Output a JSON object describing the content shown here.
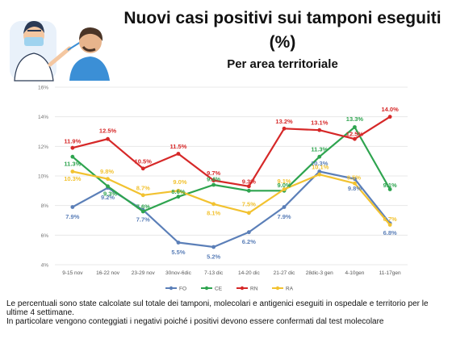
{
  "header": {
    "title": "Nuovi casi positivi sui tamponi eseguiti (%)",
    "subtitle": "Per area territoriale"
  },
  "footnote": {
    "line1": "Le percentuali sono state calcolate sul totale dei tamponi, molecolari e antigenici eseguiti in ospedale e territorio per le ultime 4 settimane.",
    "line2": "In particolare vengono conteggiati i negativi poiché i positivi devono essere confermati dal test molecolare"
  },
  "icons": {
    "illustration": "doctor-swab-test-icon"
  },
  "chart_data": {
    "type": "line",
    "title": "",
    "xlabel": "",
    "ylabel": "",
    "ylim": [
      4,
      16
    ],
    "yticks": [
      4,
      6,
      8,
      10,
      12,
      14,
      16
    ],
    "ytick_labels": [
      "4%",
      "6%",
      "8%",
      "10%",
      "12%",
      "14%",
      "16%"
    ],
    "grid": true,
    "legend_position": "bottom",
    "categories": [
      "9-15 nov",
      "16-22 nov",
      "23-29 nov",
      "30nov-6dic",
      "7-13 dic",
      "14-20 dic",
      "21-27 dic",
      "28dic-3 gen",
      "4-10gen",
      "11-17gen"
    ],
    "series": [
      {
        "name": "FO",
        "color": "#5b7fb8",
        "values": [
          7.9,
          9.2,
          7.7,
          5.5,
          5.2,
          6.2,
          7.9,
          10.3,
          9.8,
          6.8
        ],
        "labels": [
          "7.9%",
          "9.2%",
          "7.7%",
          "5.5%",
          "5.2%",
          "6.2%",
          "7.9%",
          "10.3%",
          "9.8%",
          "6.8%"
        ]
      },
      {
        "name": "CE",
        "color": "#2ea44f",
        "values": [
          11.3,
          9.3,
          7.6,
          8.6,
          9.4,
          9.0,
          9.0,
          11.3,
          13.3,
          9.1
        ],
        "labels": [
          "11.3%",
          "9.3%",
          "7.6%",
          "8.6%",
          "9.4%",
          "",
          "9.0%",
          "11.3%",
          "13.3%",
          "9.1%"
        ]
      },
      {
        "name": "RN",
        "color": "#d62828",
        "values": [
          11.9,
          12.5,
          10.5,
          11.5,
          9.7,
          9.3,
          13.2,
          13.1,
          12.5,
          14.0
        ],
        "labels": [
          "11.9%",
          "12.5%",
          "10.5%",
          "11.5%",
          "9.7%",
          "9.3%",
          "13.2%",
          "13.1%",
          "12.5%",
          "14.0%"
        ]
      },
      {
        "name": "RA",
        "color": "#f2c230",
        "values": [
          10.3,
          9.8,
          8.7,
          9.0,
          8.1,
          7.5,
          9.1,
          10.1,
          9.5,
          6.7
        ],
        "labels": [
          "10.3%",
          "9.8%",
          "8.7%",
          "9.0%",
          "8.1%",
          "7.5%",
          "9.1%",
          "10.1%",
          "9.5%",
          "6.7%"
        ]
      }
    ]
  }
}
